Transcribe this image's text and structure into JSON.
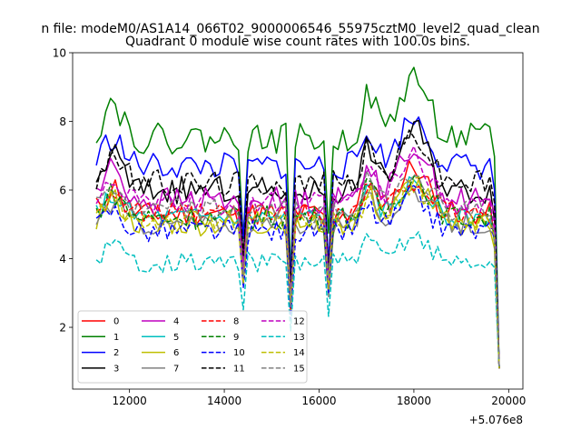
{
  "figure": {
    "suptitle": "n file: modeM0/AS1A14_066T02_9000006546_55975cztM0_level2_quad_clean",
    "offset_text": "+5.076e8"
  },
  "chart_data": {
    "type": "line",
    "title": "Quadrant 0 module wise count rates with 100.0s bins.",
    "xlabel": "",
    "ylabel": "",
    "x_offset": 507600000,
    "xlim": [
      10800,
      20300
    ],
    "ylim": [
      0.2,
      10.0
    ],
    "x_ticks": [
      12000,
      14000,
      16000,
      18000,
      20000
    ],
    "x_tick_labels": [
      "12000",
      "14000",
      "16000",
      "18000",
      "20000"
    ],
    "y_ticks": [
      2,
      4,
      6,
      8,
      10
    ],
    "y_tick_labels": [
      "2",
      "4",
      "6",
      "8",
      "10"
    ],
    "grid": false,
    "legend_position": "lower-left",
    "legend_columns": 4,
    "x_start": 11300,
    "x_step": 100,
    "n_points": 86,
    "dip_points": [
      {
        "x": 14400,
        "f": 0.65
      },
      {
        "x": 15400,
        "f": 0.5
      },
      {
        "x": 16200,
        "f": 0.6
      }
    ],
    "series": [
      {
        "name": "0",
        "color": "#ff0000",
        "dash": "solid",
        "level": 5.3,
        "amp": 0.35,
        "peak": 1.4,
        "seed": 11
      },
      {
        "name": "1",
        "color": "#008000",
        "dash": "solid",
        "level": 7.5,
        "amp": 0.45,
        "peak": 1.8,
        "seed": 22
      },
      {
        "name": "2",
        "color": "#0000ff",
        "dash": "solid",
        "level": 6.7,
        "amp": 0.4,
        "peak": 1.4,
        "seed": 33
      },
      {
        "name": "3",
        "color": "#000000",
        "dash": "solid",
        "level": 6.0,
        "amp": 0.4,
        "peak": 1.8,
        "seed": 44
      },
      {
        "name": "4",
        "color": "#bf00bf",
        "dash": "solid",
        "level": 5.7,
        "amp": 0.4,
        "peak": 1.6,
        "seed": 55
      },
      {
        "name": "5",
        "color": "#00bfbf",
        "dash": "solid",
        "level": 5.2,
        "amp": 0.3,
        "peak": 1.0,
        "seed": 66
      },
      {
        "name": "6",
        "color": "#bfbf00",
        "dash": "solid",
        "level": 5.0,
        "amp": 0.35,
        "peak": 1.2,
        "seed": 77
      },
      {
        "name": "7",
        "color": "#808080",
        "dash": "solid",
        "level": 5.0,
        "amp": 0.3,
        "peak": 1.0,
        "seed": 88
      },
      {
        "name": "8",
        "color": "#ff0000",
        "dash": "dashed",
        "level": 5.3,
        "amp": 0.35,
        "peak": 1.0,
        "seed": 99
      },
      {
        "name": "9",
        "color": "#008000",
        "dash": "dashed",
        "level": 5.2,
        "amp": 0.35,
        "peak": 1.2,
        "seed": 110
      },
      {
        "name": "10",
        "color": "#0000ff",
        "dash": "dashed",
        "level": 4.8,
        "amp": 0.35,
        "peak": 1.0,
        "seed": 121
      },
      {
        "name": "11",
        "color": "#000000",
        "dash": "dashed",
        "level": 6.2,
        "amp": 0.4,
        "peak": 1.4,
        "seed": 132
      },
      {
        "name": "12",
        "color": "#bf00bf",
        "dash": "dashed",
        "level": 5.6,
        "amp": 0.35,
        "peak": 1.4,
        "seed": 143
      },
      {
        "name": "13",
        "color": "#00bfbf",
        "dash": "dashed",
        "level": 3.9,
        "amp": 0.3,
        "peak": 0.8,
        "seed": 154
      },
      {
        "name": "14",
        "color": "#bfbf00",
        "dash": "dashed",
        "level": 5.1,
        "amp": 0.35,
        "peak": 1.0,
        "seed": 165
      },
      {
        "name": "15",
        "color": "#808080",
        "dash": "dashed",
        "level": 5.4,
        "amp": 0.35,
        "peak": 1.2,
        "seed": 176
      }
    ]
  }
}
